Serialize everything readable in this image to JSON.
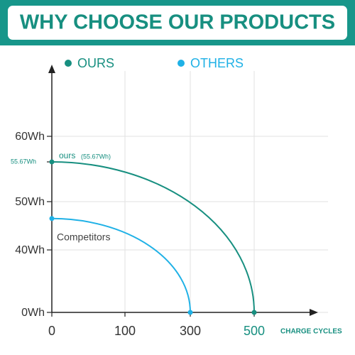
{
  "chart_data": {
    "type": "line",
    "title": "WHY CHOOSE OUR PRODUCTS",
    "x_label": "CHARGE CYCLES",
    "series": [
      {
        "name": "OURS",
        "color": "#178f80",
        "x": [
          0,
          500
        ],
        "values": [
          55.67,
          0
        ]
      },
      {
        "name": "OTHERS",
        "color": "#1fb1e6",
        "x": [
          0,
          300
        ],
        "values": [
          46.5,
          0
        ]
      }
    ],
    "annotations": [
      "ours",
      "(55.67Wh)",
      "Competitors"
    ],
    "xticks": [
      0,
      100,
      300,
      500
    ],
    "yticks": [
      {
        "value": 0,
        "label": "0Wh"
      },
      {
        "value": 40,
        "label": "40Wh"
      },
      {
        "value": 50,
        "label": "50Wh"
      },
      {
        "value": 55.67,
        "label": "55.67Wh"
      },
      {
        "value": 60,
        "label": "60Wh"
      }
    ],
    "grid": true
  }
}
